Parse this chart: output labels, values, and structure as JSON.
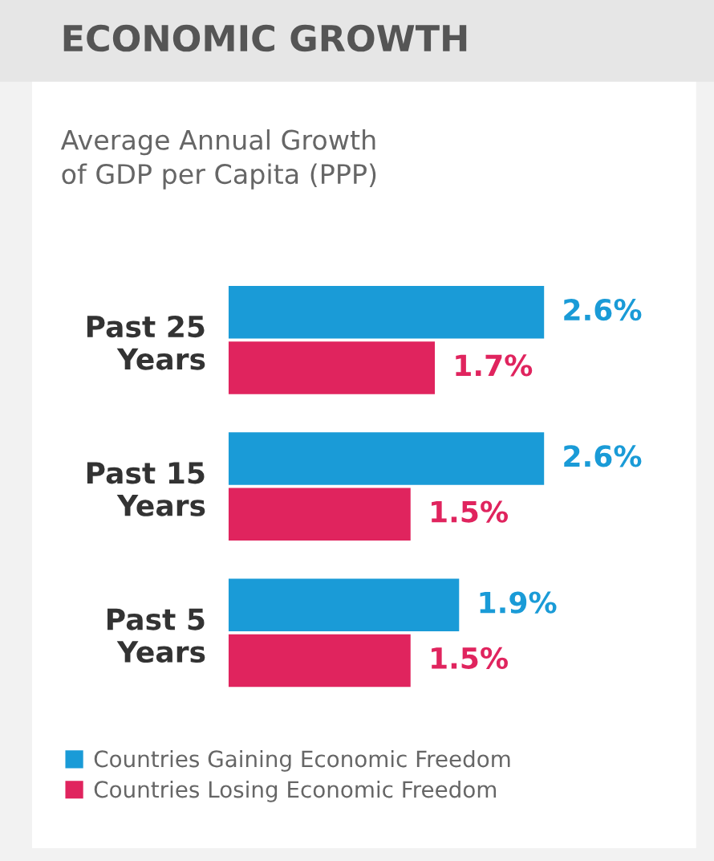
{
  "chart_data": {
    "type": "bar",
    "orientation": "horizontal",
    "title": "ECONOMIC GROWTH",
    "subtitle": "Average Annual Growth\nof GDP per Capita (PPP)",
    "categories": [
      "Past 25\nYears",
      "Past 15\nYears",
      "Past 5\nYears"
    ],
    "series": [
      {
        "name": "Countries Gaining Economic Freedom",
        "color": "#1a9bd7",
        "values": [
          2.6,
          2.6,
          1.9
        ],
        "value_labels": [
          "2.6%",
          "2.6%",
          "1.9%"
        ]
      },
      {
        "name": "Countries Losing Economic Freedom",
        "color": "#e0245e",
        "values": [
          1.7,
          1.5,
          1.5
        ],
        "value_labels": [
          "1.7%",
          "1.5%",
          "1.5%"
        ]
      }
    ],
    "legend": "bottom left",
    "grid": false
  }
}
